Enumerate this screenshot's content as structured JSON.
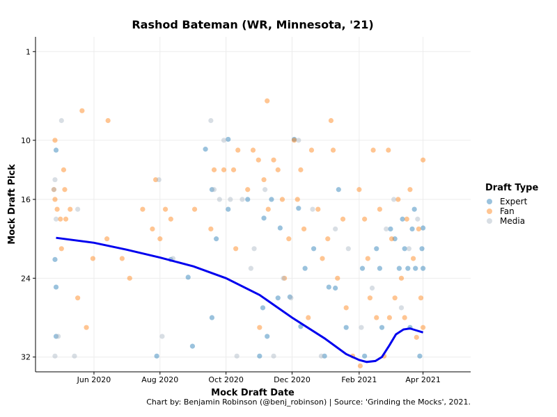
{
  "chart_data": {
    "type": "scatter",
    "title": "Rashod Bateman (WR, Minnesota, '21)",
    "xlabel": "Mock Draft Date",
    "ylabel": "Mock Draft Pick",
    "caption": "Chart by: Benjamin Robinson (@benj_robinson) | Source: 'Grinding the Mocks', 2021.",
    "x_ticks": [
      {
        "date": "2020-06-01",
        "label": "Jun 2020"
      },
      {
        "date": "2020-08-01",
        "label": "Aug 2020"
      },
      {
        "date": "2020-10-01",
        "label": "Oct 2020"
      },
      {
        "date": "2020-12-01",
        "label": "Dec 2020"
      },
      {
        "date": "2021-02-01",
        "label": "Feb 2021"
      },
      {
        "date": "2021-04-01",
        "label": "Apr 2021"
      }
    ],
    "xlim": [
      "2020-04-08",
      "2021-05-15"
    ],
    "y_ticks": [
      1,
      10,
      16,
      24,
      32
    ],
    "ylim": [
      33.5,
      -0.5
    ],
    "y_reversed": true,
    "grid": true,
    "legend": {
      "title": "Draft Type",
      "position": "right",
      "entries": [
        {
          "name": "Expert",
          "color": "#1f77b4"
        },
        {
          "name": "Fan",
          "color": "#ff7f0e"
        },
        {
          "name": "Media",
          "color": "#a9b5c4"
        }
      ]
    },
    "trend": {
      "color": "#0000ee",
      "points": [
        {
          "date": "2020-04-27",
          "pick": 19.9
        },
        {
          "date": "2020-06-01",
          "pick": 20.4
        },
        {
          "date": "2020-07-01",
          "pick": 21.1
        },
        {
          "date": "2020-08-01",
          "pick": 21.9
        },
        {
          "date": "2020-09-01",
          "pick": 22.8
        },
        {
          "date": "2020-10-01",
          "pick": 24.0
        },
        {
          "date": "2020-11-01",
          "pick": 25.7
        },
        {
          "date": "2020-12-01",
          "pick": 28.0
        },
        {
          "date": "2020-12-31",
          "pick": 30.1
        },
        {
          "date": "2021-01-20",
          "pick": 31.7
        },
        {
          "date": "2021-02-01",
          "pick": 32.3
        },
        {
          "date": "2021-02-08",
          "pick": 32.5
        },
        {
          "date": "2021-02-16",
          "pick": 32.4
        },
        {
          "date": "2021-02-22",
          "pick": 32.0
        },
        {
          "date": "2021-03-01",
          "pick": 30.8
        },
        {
          "date": "2021-03-07",
          "pick": 29.7
        },
        {
          "date": "2021-03-14",
          "pick": 29.2
        },
        {
          "date": "2021-03-20",
          "pick": 29.1
        },
        {
          "date": "2021-03-26",
          "pick": 29.3
        },
        {
          "date": "2021-04-01",
          "pick": 29.5
        }
      ]
    },
    "series": [
      {
        "name": "Expert",
        "color": "#1f77b4",
        "points": [
          [
            "2020-04-27",
            11
          ],
          [
            "2020-04-27",
            24.9
          ],
          [
            "2020-04-27",
            29.9
          ],
          [
            "2020-04-26",
            22.1
          ],
          [
            "2020-07-29",
            31.9
          ],
          [
            "2020-08-11",
            22.1
          ],
          [
            "2020-08-27",
            23.9
          ],
          [
            "2020-08-31",
            30.9
          ],
          [
            "2020-09-12",
            10.9
          ],
          [
            "2020-09-18",
            28.0
          ],
          [
            "2020-09-18",
            15.0
          ],
          [
            "2020-09-22",
            20.0
          ],
          [
            "2020-10-03",
            9.9
          ],
          [
            "2020-10-03",
            17.0
          ],
          [
            "2020-10-21",
            16.0
          ],
          [
            "2020-11-01",
            31.9
          ],
          [
            "2020-11-04",
            27.0
          ],
          [
            "2020-11-05",
            17.9
          ],
          [
            "2020-11-08",
            29.9
          ],
          [
            "2020-11-12",
            16.0
          ],
          [
            "2020-11-18",
            26.0
          ],
          [
            "2020-11-20",
            18.9
          ],
          [
            "2020-11-29",
            25.9
          ],
          [
            "2020-12-03",
            9.9
          ],
          [
            "2020-12-07",
            16.9
          ],
          [
            "2020-12-09",
            28.9
          ],
          [
            "2020-12-13",
            23.0
          ],
          [
            "2020-12-21",
            21.0
          ],
          [
            "2020-12-31",
            31.9
          ],
          [
            "2021-01-04",
            24.9
          ],
          [
            "2021-01-10",
            25.0
          ],
          [
            "2021-01-13",
            15.0
          ],
          [
            "2021-01-20",
            29.0
          ],
          [
            "2021-02-04",
            23.0
          ],
          [
            "2021-02-06",
            31.9
          ],
          [
            "2021-02-17",
            21.0
          ],
          [
            "2021-02-20",
            23.0
          ],
          [
            "2021-02-22",
            29.0
          ],
          [
            "2021-03-02",
            19.0
          ],
          [
            "2021-03-06",
            20.0
          ],
          [
            "2021-03-10",
            23.0
          ],
          [
            "2021-03-13",
            18.0
          ],
          [
            "2021-03-15",
            21.0
          ],
          [
            "2021-03-18",
            23.0
          ],
          [
            "2021-03-20",
            29.0
          ],
          [
            "2021-03-22",
            19.0
          ],
          [
            "2021-03-25",
            23.0
          ],
          [
            "2021-03-29",
            31.9
          ],
          [
            "2021-03-31",
            21.0
          ],
          [
            "2021-04-01",
            18.9
          ],
          [
            "2021-04-01",
            23.0
          ],
          [
            "2021-03-24",
            17.0
          ]
        ]
      },
      {
        "name": "Fan",
        "color": "#ff7f0e",
        "points": [
          [
            "2020-04-25",
            15
          ],
          [
            "2020-04-26",
            16
          ],
          [
            "2020-04-26",
            10
          ],
          [
            "2020-04-28",
            17
          ],
          [
            "2020-05-01",
            18
          ],
          [
            "2020-05-02",
            21
          ],
          [
            "2020-05-04",
            13
          ],
          [
            "2020-05-05",
            15
          ],
          [
            "2020-05-06",
            18
          ],
          [
            "2020-05-10",
            17
          ],
          [
            "2020-05-17",
            26
          ],
          [
            "2020-05-21",
            7
          ],
          [
            "2020-05-25",
            29
          ],
          [
            "2020-05-31",
            22
          ],
          [
            "2020-06-14",
            8
          ],
          [
            "2020-06-13",
            20
          ],
          [
            "2020-06-27",
            22
          ],
          [
            "2020-07-04",
            24
          ],
          [
            "2020-07-16",
            17
          ],
          [
            "2020-07-25",
            19
          ],
          [
            "2020-07-28",
            14
          ],
          [
            "2020-08-06",
            17
          ],
          [
            "2020-08-01",
            20
          ],
          [
            "2020-08-11",
            18
          ],
          [
            "2020-09-02",
            17
          ],
          [
            "2020-09-17",
            19
          ],
          [
            "2020-09-20",
            13
          ],
          [
            "2020-09-29",
            13
          ],
          [
            "2020-10-08",
            13
          ],
          [
            "2020-10-10",
            21
          ],
          [
            "2020-10-12",
            11
          ],
          [
            "2020-10-21",
            15
          ],
          [
            "2020-10-26",
            11
          ],
          [
            "2020-10-31",
            12
          ],
          [
            "2020-11-01",
            29
          ],
          [
            "2020-11-05",
            14
          ],
          [
            "2020-11-08",
            6
          ],
          [
            "2020-11-09",
            17
          ],
          [
            "2020-11-14",
            12
          ],
          [
            "2020-11-18",
            13
          ],
          [
            "2020-11-22",
            16
          ],
          [
            "2020-11-24",
            24
          ],
          [
            "2020-11-28",
            20
          ],
          [
            "2020-12-03",
            10
          ],
          [
            "2020-12-06",
            16
          ],
          [
            "2020-12-09",
            13
          ],
          [
            "2020-12-12",
            19
          ],
          [
            "2020-12-16",
            28
          ],
          [
            "2020-12-19",
            11
          ],
          [
            "2020-12-25",
            17
          ],
          [
            "2020-12-29",
            22
          ],
          [
            "2021-01-03",
            20
          ],
          [
            "2021-01-06",
            8
          ],
          [
            "2021-01-08",
            11
          ],
          [
            "2021-01-12",
            24
          ],
          [
            "2021-01-17",
            18
          ],
          [
            "2021-01-20",
            27
          ],
          [
            "2021-01-26",
            31.9
          ],
          [
            "2021-02-01",
            15
          ],
          [
            "2021-02-06",
            18
          ],
          [
            "2021-02-09",
            22
          ],
          [
            "2021-02-11",
            26
          ],
          [
            "2021-02-14",
            11
          ],
          [
            "2021-02-17",
            28
          ],
          [
            "2021-02-20",
            17
          ],
          [
            "2021-02-24",
            31.9
          ],
          [
            "2021-02-28",
            11
          ],
          [
            "2021-03-03",
            20
          ],
          [
            "2021-03-06",
            26
          ],
          [
            "2021-03-09",
            16
          ],
          [
            "2021-03-12",
            24
          ],
          [
            "2021-03-15",
            28
          ],
          [
            "2021-03-17",
            18
          ],
          [
            "2021-03-20",
            15
          ],
          [
            "2021-03-23",
            22
          ],
          [
            "2021-03-26",
            30
          ],
          [
            "2021-03-28",
            19
          ],
          [
            "2021-03-30",
            26
          ],
          [
            "2021-04-01",
            12
          ],
          [
            "2021-04-01",
            29
          ],
          [
            "2021-02-02",
            32.9
          ],
          [
            "2021-03-01",
            28
          ]
        ]
      },
      {
        "name": "Media",
        "color": "#a9b5c4",
        "points": [
          [
            "2020-04-25",
            15
          ],
          [
            "2020-04-26",
            14
          ],
          [
            "2020-04-26",
            31.9
          ],
          [
            "2020-04-27",
            18
          ],
          [
            "2020-04-29",
            29.9
          ],
          [
            "2020-05-02",
            8
          ],
          [
            "2020-05-14",
            31.9
          ],
          [
            "2020-05-17",
            17
          ],
          [
            "2020-07-31",
            14
          ],
          [
            "2020-08-03",
            29.9
          ],
          [
            "2020-08-13",
            22
          ],
          [
            "2020-09-17",
            8
          ],
          [
            "2020-09-20",
            15
          ],
          [
            "2020-09-25",
            16
          ],
          [
            "2020-09-29",
            10
          ],
          [
            "2020-10-16",
            16
          ],
          [
            "2020-10-05",
            16
          ],
          [
            "2020-10-11",
            31.9
          ],
          [
            "2020-10-24",
            23
          ],
          [
            "2020-10-27",
            21
          ],
          [
            "2020-11-06",
            15
          ],
          [
            "2020-11-14",
            31.9
          ],
          [
            "2020-11-23",
            24
          ],
          [
            "2020-11-30",
            26
          ],
          [
            "2020-12-07",
            10
          ],
          [
            "2020-12-20",
            17
          ],
          [
            "2020-12-28",
            31.9
          ],
          [
            "2021-01-10",
            19
          ],
          [
            "2021-01-22",
            21
          ],
          [
            "2021-02-03",
            29
          ],
          [
            "2021-02-13",
            25
          ],
          [
            "2021-02-26",
            19
          ],
          [
            "2021-03-05",
            16
          ],
          [
            "2021-03-12",
            27
          ],
          [
            "2021-03-19",
            21
          ],
          [
            "2021-03-27",
            18
          ]
        ]
      }
    ]
  }
}
